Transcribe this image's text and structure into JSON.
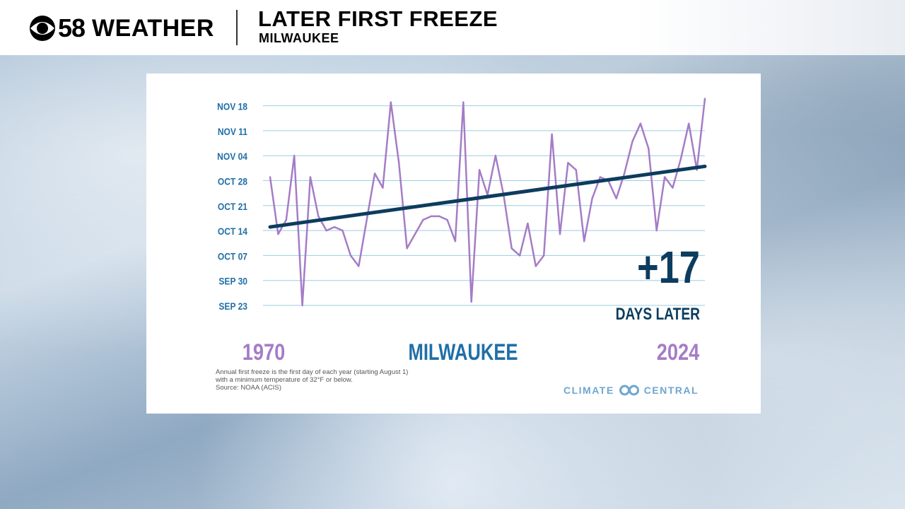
{
  "header": {
    "brand_number": "58",
    "brand_word": "WEATHER",
    "headline": "LATER FIRST FREEZE",
    "subhead": "MILWAUKEE"
  },
  "footnote": {
    "line1": "Annual first freeze is the first day of each year (starting August 1)",
    "line2": "with a minimum temperature of 32°F or below.",
    "line3": "Source: NOAA (ACIS)"
  },
  "logo": {
    "left": "CLIMATE",
    "right": "CENTRAL"
  },
  "colors": {
    "series": "#a57cc6",
    "trend": "#0c3c5e",
    "axis_text": "#1f6fa7",
    "grid": "#9ccde3",
    "center_label": "#1f6fa7",
    "year_label": "#a57cc6",
    "logo": "#6fa6cf"
  },
  "chart_data": {
    "type": "line",
    "title": "MILWAUKEE",
    "x_start_label": "1970",
    "x_end_label": "2024",
    "x_range": [
      1970,
      2024
    ],
    "y_tick_labels": [
      "SEP 23",
      "SEP 30",
      "OCT 07",
      "OCT 14",
      "OCT 21",
      "OCT 28",
      "NOV 04",
      "NOV 11",
      "NOV 18"
    ],
    "y_ticks": [
      "Sep 23",
      "Sep 30",
      "Oct 07",
      "Oct 14",
      "Oct 21",
      "Oct 28",
      "Nov 04",
      "Nov 11",
      "Nov 18"
    ],
    "ylim": [
      "Sep 23",
      "Nov 20"
    ],
    "grid": true,
    "series": [
      {
        "x": [
          1970,
          1971,
          1972,
          1973,
          1974,
          1975,
          1976,
          1977,
          1978,
          1979,
          1980,
          1981,
          1982,
          1983,
          1984,
          1985,
          1986,
          1987,
          1988,
          1989,
          1990,
          1991,
          1992,
          1993,
          1994,
          1995,
          1996,
          1997,
          1998,
          1999,
          2000,
          2001,
          2002,
          2003,
          2004,
          2005,
          2006,
          2007,
          2008,
          2009,
          2010,
          2011,
          2012,
          2013,
          2014,
          2015,
          2016,
          2017,
          2018,
          2019,
          2020,
          2021,
          2022,
          2023,
          2024
        ],
        "y": [
          "Oct 29",
          "Oct 13",
          "Oct 17",
          "Nov 04",
          "Sep 23",
          "Oct 29",
          "Oct 18",
          "Oct 14",
          "Oct 15",
          "Oct 14",
          "Oct 07",
          "Oct 04",
          "Oct 17",
          "Oct 30",
          "Oct 26",
          "Nov 19",
          "Nov 02",
          "Oct 09",
          "Oct 13",
          "Oct 17",
          "Oct 18",
          "Oct 18",
          "Oct 17",
          "Oct 11",
          "Nov 19",
          "Sep 24",
          "Oct 31",
          "Oct 24",
          "Nov 04",
          "Oct 24",
          "Oct 09",
          "Oct 07",
          "Oct 16",
          "Oct 04",
          "Oct 07",
          "Nov 10",
          "Oct 13",
          "Nov 02",
          "Oct 31",
          "Oct 11",
          "Oct 23",
          "Oct 29",
          "Oct 28",
          "Oct 23",
          "Oct 30",
          "Nov 08",
          "Nov 13",
          "Nov 06",
          "Oct 14",
          "Oct 29",
          "Oct 26",
          "Nov 03",
          "Nov 13",
          "Oct 31",
          "Nov 20"
        ]
      }
    ],
    "trend": {
      "start": [
        "1970",
        "Oct 15"
      ],
      "end": [
        "2024",
        "Nov 01"
      ]
    },
    "annotation": {
      "value": "+17",
      "unit": "DAYS LATER"
    }
  }
}
